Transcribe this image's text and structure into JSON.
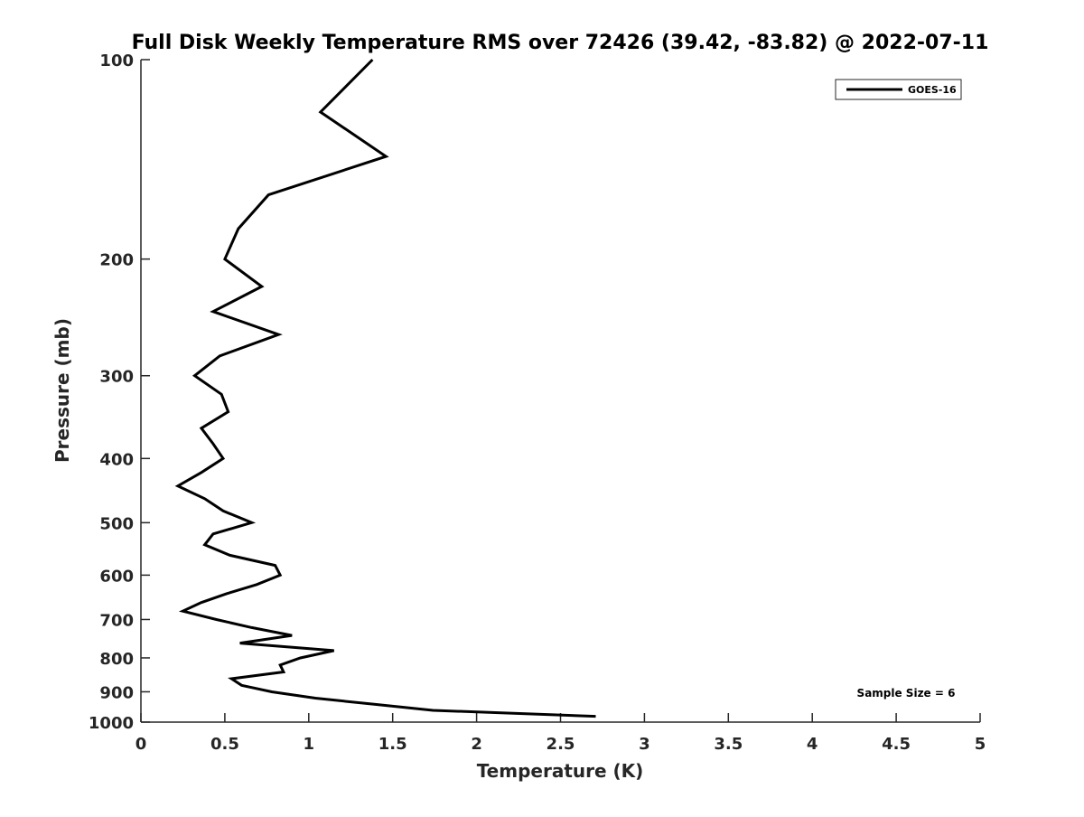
{
  "chart_data": {
    "type": "line",
    "title": "Full Disk Weekly Temperature RMS over 72426 (39.42, -83.82) @ 2022-07-11",
    "xlabel": "Temperature (K)",
    "ylabel": "Pressure (mb)",
    "xlim": [
      0,
      5
    ],
    "ylim": [
      100,
      1000
    ],
    "yscale": "log",
    "yreversed": true,
    "xticks": [
      0,
      0.5,
      1,
      1.5,
      2,
      2.5,
      3,
      3.5,
      4,
      4.5,
      5
    ],
    "xtick_labels": [
      "0",
      "0.5",
      "1",
      "1.5",
      "2",
      "2.5",
      "3",
      "3.5",
      "4",
      "4.5",
      "5"
    ],
    "yticks": [
      100,
      200,
      300,
      400,
      500,
      600,
      700,
      800,
      900,
      1000
    ],
    "ytick_labels": [
      "100",
      "200",
      "300",
      "400",
      "500",
      "600",
      "700",
      "800",
      "900",
      "1000"
    ],
    "grid": false,
    "legend": {
      "placement": "top-right",
      "entries": [
        "GOES-16"
      ]
    },
    "annotation": "Sample Size = 6",
    "series": [
      {
        "name": "GOES-16",
        "color": "#000000",
        "pressure": [
          100,
          120,
          140,
          160,
          180,
          200,
          220,
          240,
          260,
          280,
          300,
          320,
          340,
          360,
          380,
          400,
          420,
          440,
          460,
          480,
          500,
          520,
          540,
          560,
          580,
          600,
          620,
          640,
          660,
          680,
          700,
          720,
          740,
          760,
          780,
          800,
          820,
          840,
          860,
          880,
          900,
          920,
          940,
          960,
          980
        ],
        "temperature": [
          1.38,
          1.07,
          1.46,
          0.76,
          0.58,
          0.5,
          0.72,
          0.43,
          0.82,
          0.47,
          0.32,
          0.48,
          0.52,
          0.36,
          0.43,
          0.49,
          0.36,
          0.22,
          0.38,
          0.49,
          0.66,
          0.43,
          0.38,
          0.53,
          0.8,
          0.83,
          0.69,
          0.51,
          0.36,
          0.25,
          0.45,
          0.66,
          0.9,
          0.59,
          1.15,
          0.95,
          0.83,
          0.85,
          0.54,
          0.6,
          0.78,
          1.04,
          1.39,
          1.74,
          2.71
        ]
      }
    ]
  }
}
